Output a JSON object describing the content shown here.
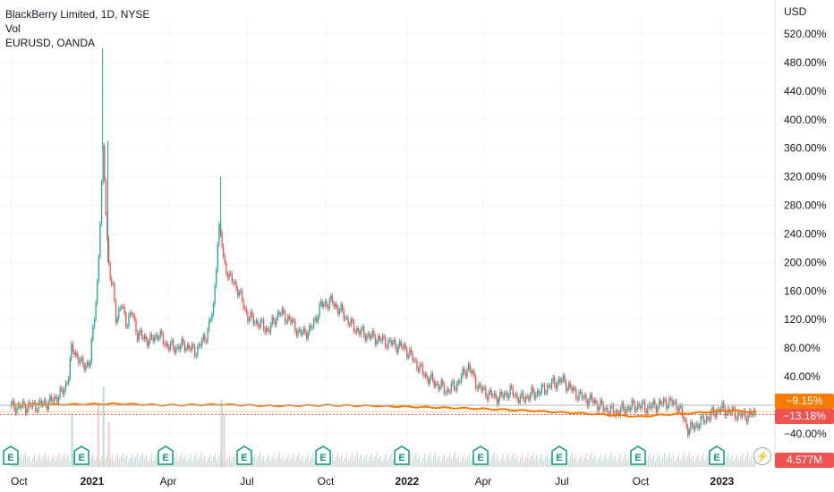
{
  "legend": {
    "main_symbol": "BlackBerry Limited, 1D, NYSE",
    "volume": "Vol",
    "compare_symbol": "EURUSD, OANDA"
  },
  "axis_currency": "USD",
  "price_tags": {
    "eurusd": {
      "label": "−9.15%",
      "color": "#f57c00"
    },
    "bb": {
      "label": "−13.18%",
      "color": "#ef5350"
    },
    "volume": {
      "label": "4.577M",
      "color": "#ef5350"
    }
  },
  "earnings_marker_label": "E",
  "colors": {
    "up": "#26a69a",
    "down": "#ef5350",
    "compare": "#f57c00"
  },
  "chart_data": {
    "type": "line",
    "y_unit": "percent change",
    "ylim": [
      -60,
      540
    ],
    "y_ticks": [
      520,
      480,
      440,
      400,
      360,
      320,
      280,
      240,
      200,
      160,
      120,
      80,
      40,
      0,
      -40
    ],
    "y_tick_labels": [
      "520.00%",
      "480.00%",
      "440.00%",
      "400.00%",
      "360.00%",
      "320.00%",
      "280.00%",
      "240.00%",
      "200.00%",
      "160.00%",
      "120.00%",
      "80.00%",
      "40.00%",
      "",
      "−40.00%"
    ],
    "x_ticks": [
      {
        "label": "Oct",
        "t": 0.0,
        "major": false
      },
      {
        "label": "2021",
        "t": 3.1,
        "major": true
      },
      {
        "label": "Apr",
        "t": 6.0,
        "major": false
      },
      {
        "label": "Jul",
        "t": 9.0,
        "major": false
      },
      {
        "label": "Oct",
        "t": 12.0,
        "major": false
      },
      {
        "label": "2022",
        "t": 15.1,
        "major": true
      },
      {
        "label": "Apr",
        "t": 18.0,
        "major": false
      },
      {
        "label": "Jul",
        "t": 21.0,
        "major": false
      },
      {
        "label": "Oct",
        "t": 24.0,
        "major": false
      },
      {
        "label": "2023",
        "t": 27.1,
        "major": true
      }
    ],
    "earnings_t": [
      0.0,
      2.7,
      5.9,
      8.9,
      11.9,
      14.9,
      17.9,
      20.9,
      23.9,
      26.9
    ],
    "series": [
      {
        "name": "BlackBerry Limited",
        "t": [
          0.0,
          0.5,
          1.0,
          1.5,
          2.0,
          2.2,
          2.3,
          2.5,
          2.7,
          3.0,
          3.3,
          3.5,
          3.7,
          3.8,
          3.9,
          4.0,
          4.2,
          4.4,
          4.6,
          4.8,
          5.0,
          5.3,
          5.6,
          5.9,
          6.2,
          6.6,
          7.0,
          7.4,
          7.7,
          7.9,
          8.0,
          8.1,
          8.3,
          8.6,
          9.0,
          9.4,
          9.8,
          10.2,
          10.6,
          11.0,
          11.4,
          11.8,
          12.2,
          12.6,
          13.0,
          13.4,
          13.8,
          14.2,
          14.6,
          15.0,
          15.4,
          15.8,
          16.2,
          16.6,
          17.0,
          17.4,
          17.8,
          18.2,
          18.6,
          19.0,
          19.4,
          19.8,
          20.2,
          20.6,
          21.0,
          21.4,
          21.8,
          22.2,
          22.6,
          23.0,
          23.4,
          23.8,
          24.2,
          24.6,
          25.0,
          25.4,
          25.8,
          26.2,
          26.6,
          26.8,
          27.0,
          27.3,
          27.6,
          27.9,
          28.2,
          28.4
        ],
        "values": [
          -2,
          -2,
          0,
          5,
          20,
          45,
          80,
          70,
          55,
          60,
          180,
          360,
          200,
          170,
          160,
          120,
          140,
          115,
          130,
          100,
          95,
          90,
          100,
          85,
          80,
          85,
          75,
          95,
          135,
          250,
          235,
          200,
          180,
          165,
          125,
          115,
          105,
          130,
          120,
          100,
          105,
          140,
          145,
          130,
          110,
          100,
          95,
          90,
          85,
          80,
          60,
          40,
          30,
          20,
          30,
          55,
          25,
          15,
          10,
          20,
          8,
          15,
          20,
          30,
          35,
          20,
          10,
          5,
          -5,
          -10,
          -5,
          0,
          -3,
          0,
          5,
          0,
          -35,
          -25,
          -15,
          -10,
          -5,
          -8,
          -12,
          -15,
          -13,
          -13.18
        ]
      },
      {
        "name": "EURUSD",
        "t": [
          0.0,
          2.0,
          4.0,
          6.0,
          8.0,
          10.0,
          12.0,
          14.0,
          16.0,
          18.0,
          20.0,
          22.0,
          23.0,
          24.0,
          25.0,
          26.0,
          27.0,
          27.5,
          28.0,
          28.4
        ],
        "values": [
          0,
          1,
          2,
          0,
          1,
          -1,
          0,
          -1,
          -3,
          -5,
          -8,
          -12,
          -14,
          -16,
          -13,
          -11,
          -8,
          -7,
          -9,
          -9.15
        ]
      }
    ],
    "volume_spikes_t": [
      2.3,
      3.3,
      3.5,
      3.7,
      8.0,
      8.1
    ]
  }
}
